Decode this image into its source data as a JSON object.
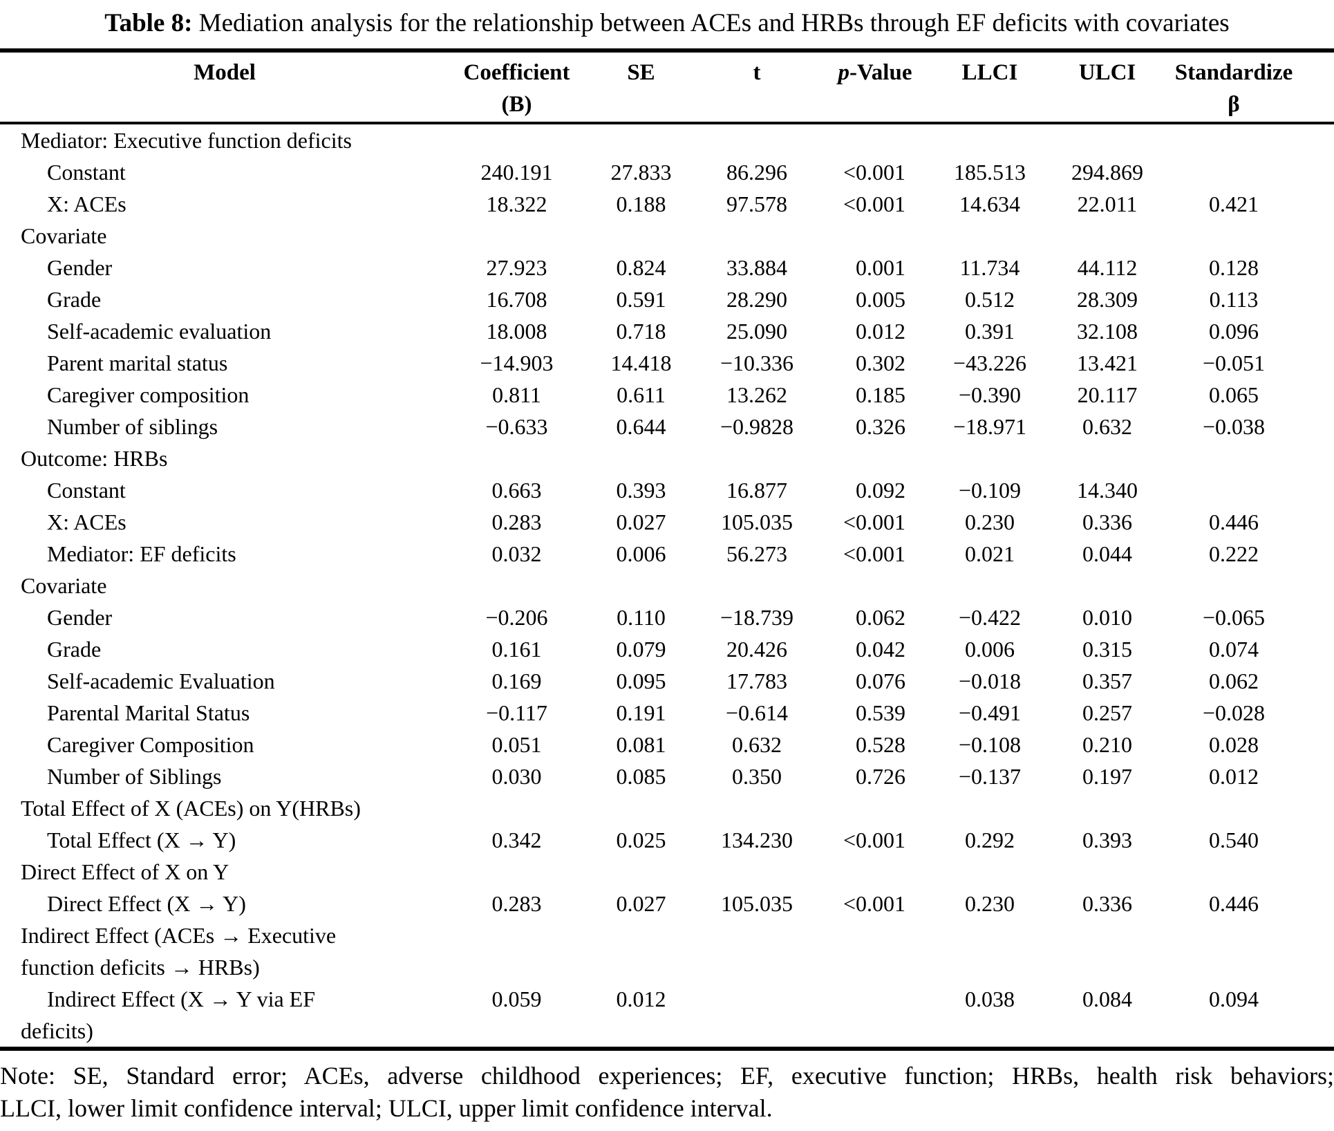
{
  "title": {
    "prefix": "Table 8:",
    "rest": " Mediation analysis for the relationship between ACEs and HRBs through EF deficits with covariates"
  },
  "table": {
    "columns": [
      {
        "key": "model",
        "label": "Model",
        "italic": "",
        "sub": ""
      },
      {
        "key": "coefficient-b",
        "label": "Coefficient",
        "italic": "",
        "sub": "(B)"
      },
      {
        "key": "se",
        "label": "SE",
        "italic": "",
        "sub": ""
      },
      {
        "key": "t",
        "label": "t",
        "italic": "",
        "sub": ""
      },
      {
        "key": "p-value",
        "label": "-Value",
        "italic": "p",
        "sub": ""
      },
      {
        "key": "llci",
        "label": "LLCI",
        "italic": "",
        "sub": ""
      },
      {
        "key": "ulci",
        "label": "ULCI",
        "italic": "",
        "sub": ""
      },
      {
        "key": "standardize-beta",
        "label": "Standardize",
        "italic": "",
        "sub": "β"
      }
    ],
    "rows": [
      {
        "type": "section",
        "label": "Mediator: Executive function deficits",
        "values": []
      },
      {
        "type": "item",
        "label": "Constant",
        "values": [
          "240.191",
          "27.833",
          "86.296",
          "<0.001",
          "185.513",
          "294.869",
          ""
        ]
      },
      {
        "type": "item",
        "label": "X: ACEs",
        "values": [
          "18.322",
          "0.188",
          "97.578",
          "<0.001",
          "14.634",
          "22.011",
          "0.421"
        ]
      },
      {
        "type": "section",
        "label": "Covariate",
        "values": []
      },
      {
        "type": "item",
        "label": "Gender",
        "values": [
          "27.923",
          "0.824",
          "33.884",
          "0.001",
          "11.734",
          "44.112",
          "0.128"
        ]
      },
      {
        "type": "item",
        "label": "Grade",
        "values": [
          "16.708",
          "0.591",
          "28.290",
          "0.005",
          "0.512",
          "28.309",
          "0.113"
        ]
      },
      {
        "type": "item",
        "label": "Self-academic evaluation",
        "values": [
          "18.008",
          "0.718",
          "25.090",
          "0.012",
          "0.391",
          "32.108",
          "0.096"
        ]
      },
      {
        "type": "item",
        "label": "Parent marital status",
        "values": [
          "−14.903",
          "14.418",
          "−10.336",
          "0.302",
          "−43.226",
          "13.421",
          "−0.051"
        ]
      },
      {
        "type": "item",
        "label": "Caregiver composition",
        "values": [
          "0.811",
          "0.611",
          "13.262",
          "0.185",
          "−0.390",
          "20.117",
          "0.065"
        ]
      },
      {
        "type": "item",
        "label": "Number of siblings",
        "values": [
          "−0.633",
          "0.644",
          "−0.9828",
          "0.326",
          "−18.971",
          "0.632",
          "−0.038"
        ]
      },
      {
        "type": "section",
        "label": "Outcome: HRBs",
        "values": []
      },
      {
        "type": "item",
        "label": "Constant",
        "values": [
          "0.663",
          "0.393",
          "16.877",
          "0.092",
          "−0.109",
          "14.340",
          ""
        ]
      },
      {
        "type": "item",
        "label": "X: ACEs",
        "values": [
          "0.283",
          "0.027",
          "105.035",
          "<0.001",
          "0.230",
          "0.336",
          "0.446"
        ]
      },
      {
        "type": "item",
        "label": "Mediator: EF deficits",
        "values": [
          "0.032",
          "0.006",
          "56.273",
          "<0.001",
          "0.021",
          "0.044",
          "0.222"
        ]
      },
      {
        "type": "section",
        "label": "Covariate",
        "values": []
      },
      {
        "type": "item",
        "label": "Gender",
        "values": [
          "−0.206",
          "0.110",
          "−18.739",
          "0.062",
          "−0.422",
          "0.010",
          "−0.065"
        ]
      },
      {
        "type": "item",
        "label": "Grade",
        "values": [
          "0.161",
          "0.079",
          "20.426",
          "0.042",
          "0.006",
          "0.315",
          "0.074"
        ]
      },
      {
        "type": "item",
        "label": "Self-academic Evaluation",
        "values": [
          "0.169",
          "0.095",
          "17.783",
          "0.076",
          "−0.018",
          "0.357",
          "0.062"
        ]
      },
      {
        "type": "item",
        "label": "Parental Marital Status",
        "values": [
          "−0.117",
          "0.191",
          "−0.614",
          "0.539",
          "−0.491",
          "0.257",
          "−0.028"
        ]
      },
      {
        "type": "item",
        "label": "Caregiver Composition",
        "values": [
          "0.051",
          "0.081",
          "0.632",
          "0.528",
          "−0.108",
          "0.210",
          "0.028"
        ]
      },
      {
        "type": "item",
        "label": "Number of Siblings",
        "values": [
          "0.030",
          "0.085",
          "0.350",
          "0.726",
          "−0.137",
          "0.197",
          "0.012"
        ]
      },
      {
        "type": "section",
        "label": "Total Effect of X (ACEs) on Y(HRBs)",
        "values": []
      },
      {
        "type": "item",
        "label": "Total Effect (X → Y)",
        "values": [
          "0.342",
          "0.025",
          "134.230",
          "<0.001",
          "0.292",
          "0.393",
          "0.540"
        ]
      },
      {
        "type": "section",
        "label": "Direct Effect of X on Y",
        "values": []
      },
      {
        "type": "item",
        "label": "Direct Effect (X → Y)",
        "values": [
          "0.283",
          "0.027",
          "105.035",
          "<0.001",
          "0.230",
          "0.336",
          "0.446"
        ]
      },
      {
        "type": "section",
        "label": "Indirect Effect (ACEs → Executive\nfunction deficits → HRBs)",
        "values": []
      },
      {
        "type": "item",
        "label": "Indirect Effect (X → Y via EF\ndeficits)",
        "values": [
          "0.059",
          "0.012",
          "",
          "",
          "0.038",
          "0.084",
          "0.094"
        ]
      }
    ]
  },
  "note": {
    "line1": "Note: SE, Standard error; ACEs, adverse childhood experiences; EF, executive function; HRBs, health risk behaviors;",
    "line2": "LLCI, lower limit confidence interval; ULCI, upper limit confidence interval."
  }
}
